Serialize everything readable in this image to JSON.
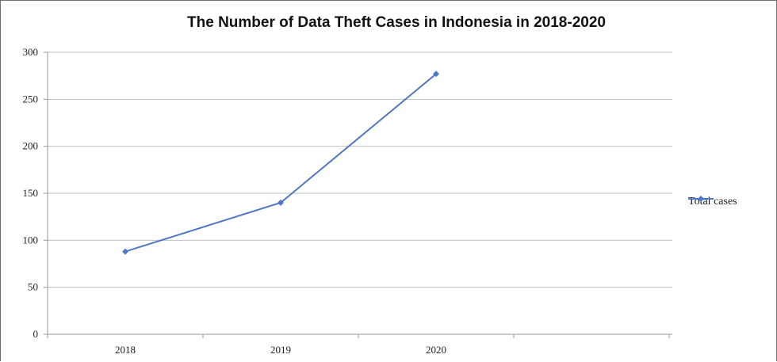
{
  "chart_data": {
    "type": "line",
    "title": "The Number of Data Theft Cases in Indonesia in 2018-2020",
    "xlabel": "",
    "ylabel": "",
    "categories": [
      "2018",
      "2019",
      "2020"
    ],
    "series": [
      {
        "name": "Total cases",
        "values": [
          88,
          140,
          277
        ],
        "color": "#4f78c6"
      }
    ],
    "ylim": [
      0,
      300
    ],
    "yticks": [
      0,
      50,
      100,
      150,
      200,
      250,
      300
    ],
    "grid": true,
    "legend": "right",
    "marker": "diamond"
  },
  "colors": {
    "series_line": "#4f78c6",
    "gridline": "#bfbfbf",
    "axis": "#9a9a9a",
    "frame": "#6e6e6e"
  }
}
